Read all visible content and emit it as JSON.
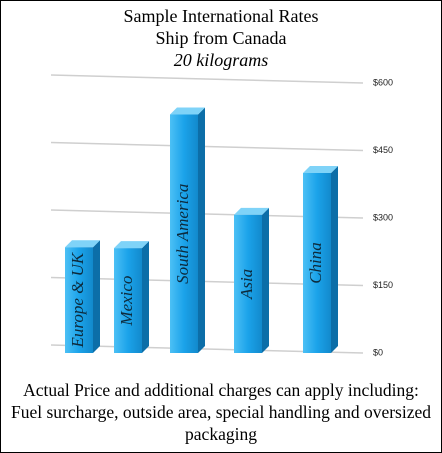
{
  "chart_data": {
    "type": "bar",
    "title": "Sample International Rates",
    "subtitle": "Ship from Canada",
    "weight_label": "20 kilograms",
    "categories": [
      "Europe & UK",
      "Mexico",
      "South America",
      "Asia",
      "China"
    ],
    "values": [
      235,
      233,
      530,
      307,
      400
    ],
    "color": "#1ba3ea",
    "ylim": [
      0,
      600
    ],
    "yticks": [
      {
        "value": 0,
        "label": "$0"
      },
      {
        "value": 150,
        "label": "$150"
      },
      {
        "value": 300,
        "label": "$300"
      },
      {
        "value": 450,
        "label": "$450"
      },
      {
        "value": 600,
        "label": "$600"
      }
    ],
    "grid": true,
    "annotation": "Actual Price and additional charges can apply including: Fuel surcharge, outside area, special handling and oversized packaging"
  }
}
